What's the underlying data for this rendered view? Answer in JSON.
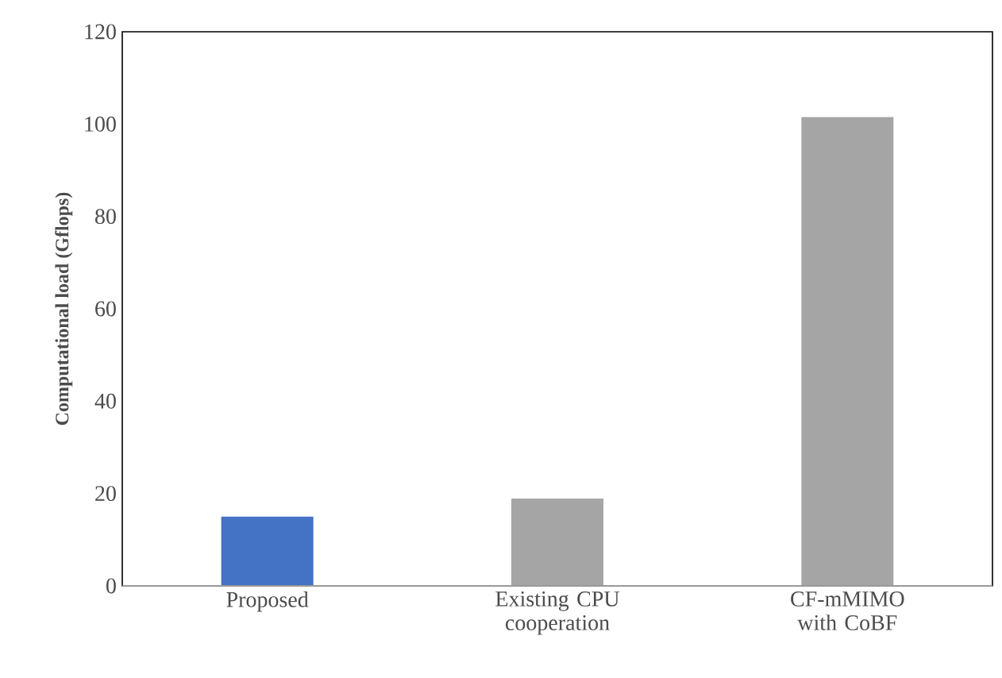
{
  "chart_data": {
    "type": "bar",
    "categories": [
      "Proposed",
      "Existing CPU cooperation",
      "CF-mMIMO with CoBF"
    ],
    "values": [
      15.0,
      18.9,
      101.5
    ],
    "colors": [
      "#4472c4",
      "#a5a5a5",
      "#a5a5a5"
    ],
    "ylabel": "Computational load (Gflops)",
    "ylim": [
      0,
      120
    ],
    "yticks": [
      0,
      20,
      40,
      60,
      80,
      100,
      120
    ]
  }
}
